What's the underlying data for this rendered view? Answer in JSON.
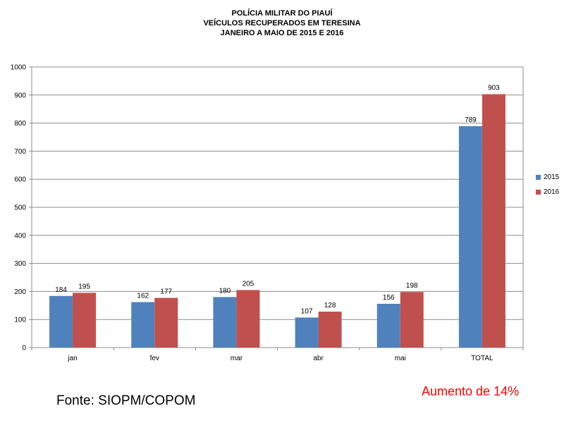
{
  "header": {
    "lines": [
      "POLÍCIA MILITAR DO PIAUÍ",
      "VEÍCULOS  RECUPERADOS  EM TERESINA",
      "JANEIRO A MAIO DE  2015 E 2016"
    ]
  },
  "chart_data": {
    "type": "bar",
    "categories": [
      "jan",
      "fev",
      "mar",
      "abr",
      "mai",
      "TOTAL"
    ],
    "series": [
      {
        "name": "2015",
        "color": "#4F81BD",
        "values": [
          184,
          162,
          180,
          107,
          156,
          789
        ]
      },
      {
        "name": "2016",
        "color": "#C0504D",
        "values": [
          195,
          177,
          205,
          128,
          198,
          903
        ]
      }
    ],
    "ylim": [
      0,
      1000
    ],
    "yticks": [
      0,
      100,
      200,
      300,
      400,
      500,
      600,
      700,
      800,
      900,
      1000
    ],
    "grid": true,
    "legend_position": "right"
  },
  "footer": {
    "source": "Fonte: SIOPM/COPOM",
    "note": "Aumento de 14%",
    "note_color": "#FF0000"
  }
}
